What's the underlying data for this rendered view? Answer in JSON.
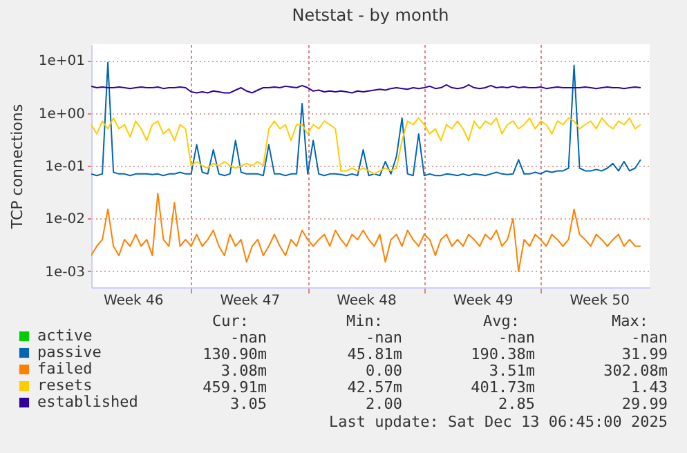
{
  "chart_data": {
    "type": "line",
    "title": "Netstat - by month",
    "ylabel": "TCP connections",
    "x": [
      "2025-11-11T00:00",
      "2025-11-11T08:00",
      "2025-11-11T16:00",
      "2025-11-12T00:00",
      "2025-11-12T08:00",
      "2025-11-12T16:00",
      "2025-11-13T00:00",
      "2025-11-13T08:00",
      "2025-11-13T16:00",
      "2025-11-14T00:00",
      "2025-11-14T08:00",
      "2025-11-14T16:00",
      "2025-11-15T00:00",
      "2025-11-15T08:00",
      "2025-11-15T16:00",
      "2025-11-16T00:00",
      "2025-11-16T08:00",
      "2025-11-16T16:00",
      "2025-11-17T00:00",
      "2025-11-17T08:00",
      "2025-11-17T16:00",
      "2025-11-18T00:00",
      "2025-11-18T08:00",
      "2025-11-18T16:00",
      "2025-11-19T00:00",
      "2025-11-19T08:00",
      "2025-11-19T16:00",
      "2025-11-20T00:00",
      "2025-11-20T08:00",
      "2025-11-20T16:00",
      "2025-11-21T00:00",
      "2025-11-21T08:00",
      "2025-11-21T16:00",
      "2025-11-22T00:00",
      "2025-11-22T08:00",
      "2025-11-22T16:00",
      "2025-11-23T00:00",
      "2025-11-23T08:00",
      "2025-11-23T16:00",
      "2025-11-24T00:00",
      "2025-11-24T08:00",
      "2025-11-24T16:00",
      "2025-11-25T00:00",
      "2025-11-25T08:00",
      "2025-11-25T16:00",
      "2025-11-26T00:00",
      "2025-11-26T08:00",
      "2025-11-26T16:00",
      "2025-11-27T00:00",
      "2025-11-27T08:00",
      "2025-11-27T16:00",
      "2025-11-28T00:00",
      "2025-11-28T08:00",
      "2025-11-28T16:00",
      "2025-11-29T00:00",
      "2025-11-29T08:00",
      "2025-11-29T16:00",
      "2025-11-30T00:00",
      "2025-11-30T08:00",
      "2025-11-30T16:00",
      "2025-12-01T00:00",
      "2025-12-01T08:00",
      "2025-12-01T16:00",
      "2025-12-02T00:00",
      "2025-12-02T08:00",
      "2025-12-02T16:00",
      "2025-12-03T00:00",
      "2025-12-03T08:00",
      "2025-12-03T16:00",
      "2025-12-04T00:00",
      "2025-12-04T08:00",
      "2025-12-04T16:00",
      "2025-12-05T00:00",
      "2025-12-05T08:00",
      "2025-12-05T16:00",
      "2025-12-06T00:00",
      "2025-12-06T08:00",
      "2025-12-06T16:00",
      "2025-12-07T00:00",
      "2025-12-07T08:00",
      "2025-12-07T16:00",
      "2025-12-08T00:00",
      "2025-12-08T08:00",
      "2025-12-08T16:00",
      "2025-12-09T00:00",
      "2025-12-09T08:00",
      "2025-12-09T16:00",
      "2025-12-10T00:00",
      "2025-12-10T08:00",
      "2025-12-10T16:00",
      "2025-12-11T00:00",
      "2025-12-11T08:00",
      "2025-12-11T16:00",
      "2025-12-12T00:00",
      "2025-12-12T08:00",
      "2025-12-12T16:00",
      "2025-12-13T00:00",
      "2025-12-13T08:00",
      "2025-12-13T16:00",
      "2025-12-14T00:00"
    ],
    "series": [
      {
        "name": "active",
        "color": "#00cc00",
        "values": [
          null,
          null,
          null,
          null,
          null,
          null,
          null,
          null,
          null,
          null,
          null,
          null,
          null,
          null,
          null,
          null,
          null,
          null,
          null,
          null,
          null,
          null,
          null,
          null,
          null,
          null,
          null,
          null,
          null,
          null,
          null,
          null,
          null,
          null,
          null,
          null,
          null,
          null,
          null,
          null,
          null,
          null,
          null,
          null,
          null,
          null,
          null,
          null,
          null,
          null,
          null,
          null,
          null,
          null,
          null,
          null,
          null,
          null,
          null,
          null,
          null,
          null,
          null,
          null,
          null,
          null,
          null,
          null,
          null,
          null,
          null,
          null,
          null,
          null,
          null,
          null,
          null,
          null,
          null,
          null,
          null,
          null,
          null,
          null,
          null,
          null,
          null,
          null,
          null,
          null,
          null,
          null,
          null,
          null,
          null,
          null,
          null,
          null,
          null,
          null
        ]
      },
      {
        "name": "passive",
        "color": "#0066b3",
        "values": [
          0.07,
          0.065,
          0.07,
          9,
          0.075,
          0.07,
          0.07,
          0.065,
          0.07,
          0.07,
          0.07,
          0.068,
          0.07,
          0.065,
          0.07,
          0.07,
          0.075,
          0.07,
          0.07,
          0.25,
          0.075,
          0.07,
          0.2,
          0.07,
          0.065,
          0.07,
          0.3,
          0.075,
          0.07,
          0.07,
          0.07,
          0.065,
          0.25,
          0.07,
          0.07,
          0.065,
          0.07,
          0.07,
          1.5,
          0.07,
          0.3,
          0.07,
          0.065,
          0.07,
          0.07,
          0.068,
          0.065,
          0.07,
          0.065,
          0.2,
          0.065,
          0.07,
          0.065,
          0.12,
          0.07,
          0.15,
          0.8,
          0.07,
          0.065,
          0.4,
          0.065,
          0.07,
          0.065,
          0.065,
          0.07,
          0.068,
          0.065,
          0.07,
          0.065,
          0.07,
          0.068,
          0.065,
          0.07,
          0.075,
          0.07,
          0.068,
          0.07,
          0.13,
          0.07,
          0.07,
          0.075,
          0.07,
          0.08,
          0.075,
          0.08,
          0.08,
          0.09,
          8,
          0.09,
          0.08,
          0.08,
          0.085,
          0.08,
          0.09,
          0.11,
          0.08,
          0.12,
          0.08,
          0.09,
          0.13
        ]
      },
      {
        "name": "failed",
        "color": "#ff8000",
        "values": [
          0.002,
          0.003,
          0.004,
          0.015,
          0.003,
          0.002,
          0.004,
          0.003,
          0.005,
          0.003,
          0.004,
          0.002,
          0.03,
          0.004,
          0.003,
          0.02,
          0.003,
          0.004,
          0.003,
          0.005,
          0.003,
          0.004,
          0.006,
          0.003,
          0.002,
          0.005,
          0.003,
          0.004,
          0.0015,
          0.003,
          0.004,
          0.002,
          0.003,
          0.005,
          0.003,
          0.002,
          0.004,
          0.003,
          0.006,
          0.004,
          0.003,
          0.004,
          0.005,
          0.003,
          0.006,
          0.004,
          0.003,
          0.005,
          0.004,
          0.006,
          0.004,
          0.003,
          0.005,
          0.0015,
          0.004,
          0.005,
          0.003,
          0.006,
          0.004,
          0.003,
          0.005,
          0.004,
          0.002,
          0.004,
          0.005,
          0.003,
          0.004,
          0.003,
          0.005,
          0.004,
          0.003,
          0.005,
          0.004,
          0.006,
          0.003,
          0.004,
          0.01,
          0.001,
          0.004,
          0.003,
          0.005,
          0.004,
          0.003,
          0.005,
          0.004,
          0.003,
          0.004,
          0.015,
          0.005,
          0.004,
          0.003,
          0.005,
          0.004,
          0.003,
          0.004,
          0.005,
          0.003,
          0.004,
          0.003,
          0.003
        ]
      },
      {
        "name": "resets",
        "color": "#ffcc00",
        "values": [
          0.6,
          0.4,
          0.7,
          0.5,
          0.8,
          0.5,
          0.6,
          0.35,
          0.7,
          0.5,
          0.3,
          0.6,
          0.7,
          0.4,
          0.5,
          0.3,
          0.6,
          0.5,
          0.1,
          0.12,
          0.1,
          0.09,
          0.11,
          0.1,
          0.12,
          0.1,
          0.09,
          0.1,
          0.11,
          0.1,
          0.12,
          0.1,
          0.5,
          0.7,
          0.5,
          0.6,
          0.3,
          0.6,
          0.6,
          0.4,
          0.6,
          0.5,
          0.7,
          0.6,
          0.5,
          0.08,
          0.08,
          0.09,
          0.08,
          0.09,
          0.08,
          0.07,
          0.08,
          0.09,
          0.08,
          0.09,
          0.3,
          0.7,
          0.6,
          0.8,
          0.6,
          0.4,
          0.5,
          0.3,
          0.6,
          0.5,
          0.7,
          0.5,
          0.3,
          0.7,
          0.5,
          0.7,
          0.6,
          0.8,
          0.4,
          0.6,
          0.7,
          0.5,
          0.6,
          0.8,
          0.5,
          0.7,
          0.6,
          0.4,
          0.7,
          0.6,
          0.8,
          0.7,
          0.5,
          0.6,
          0.7,
          0.5,
          0.8,
          0.6,
          0.5,
          0.7,
          0.6,
          0.8,
          0.5,
          0.6
        ]
      },
      {
        "name": "established",
        "color": "#330099",
        "values": [
          3.2,
          3,
          3.1,
          3,
          3,
          3.1,
          3,
          2.9,
          3,
          3.1,
          3,
          3,
          3.1,
          2.9,
          3,
          3,
          3.1,
          3,
          2.5,
          2.4,
          2.5,
          2.4,
          2.6,
          2.5,
          2.4,
          2.4,
          2.7,
          3,
          2.6,
          2.4,
          2.7,
          3,
          3,
          3.1,
          3,
          3.2,
          3.1,
          3,
          3.3,
          3,
          2.6,
          2.7,
          2.5,
          2.6,
          2.5,
          2.6,
          2.5,
          2.4,
          2.6,
          2.5,
          2.6,
          2.7,
          2.8,
          2.7,
          2.9,
          3,
          2.9,
          2.8,
          3,
          2.9,
          3,
          3.2,
          2.9,
          3,
          3.4,
          3,
          2.9,
          3,
          3.4,
          3,
          2.9,
          3,
          3.3,
          3,
          3.1,
          3,
          3.2,
          3,
          3.1,
          3,
          3,
          3.1,
          2.9,
          3,
          3.1,
          3,
          3,
          3,
          3,
          3.1,
          3,
          2.9,
          3,
          3.1,
          3,
          3,
          2.9,
          3,
          3.1,
          3
        ]
      }
    ],
    "log": "y",
    "ylim": [
      0.0005,
      20
    ],
    "yticks": [
      {
        "value": 0.001,
        "label": "1e-03"
      },
      {
        "value": 0.01,
        "label": "1e-02"
      },
      {
        "value": 0.1,
        "label": "1e-01"
      },
      {
        "value": 1,
        "label": "1e+00"
      },
      {
        "value": 10,
        "label": "1e+01"
      }
    ],
    "xlim": [
      "2025-11-11T00:00",
      "2025-12-14T13:00"
    ],
    "xticks": [
      {
        "value": "2025-11-13T12:00",
        "label": "Week 46"
      },
      {
        "value": "2025-11-17T00:00",
        "label": null
      },
      {
        "value": "2025-11-20T12:00",
        "label": "Week 47"
      },
      {
        "value": "2025-11-24T00:00",
        "label": null
      },
      {
        "value": "2025-11-27T12:00",
        "label": "Week 48"
      },
      {
        "value": "2025-12-01T00:00",
        "label": null
      },
      {
        "value": "2025-12-04T12:00",
        "label": "Week 49"
      },
      {
        "value": "2025-12-08T00:00",
        "label": null
      },
      {
        "value": "2025-12-11T12:00",
        "label": "Week 50"
      }
    ],
    "grid": true,
    "legend": "bottom",
    "annotations": [
      "Cur:",
      "Min:",
      "Avg:",
      "Max:",
      "-nan",
      "-nan",
      "-nan",
      "-nan",
      "130.90m",
      "45.81m",
      "190.38m",
      "31.99",
      "3.08m",
      "0.00",
      "3.51m",
      "302.08m",
      "459.91m",
      "42.57m",
      "401.73m",
      "1.43",
      "3.05",
      "2.00",
      "2.85",
      "29.99",
      "Last update: Sat Dec 13 06:45:00 2025"
    ]
  }
}
